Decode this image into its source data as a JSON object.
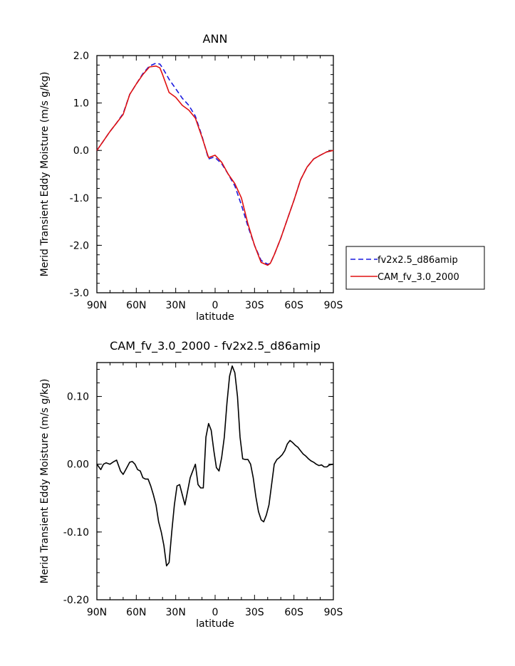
{
  "chart_data": [
    {
      "type": "line",
      "title": "ANN",
      "xlabel": "latitude",
      "ylabel": "Merid Transient Eddy Moisture (m/s g/kg)",
      "x_domain": [
        90,
        -90
      ],
      "xlim": [
        90,
        -90
      ],
      "ylim": [
        -3.0,
        2.0
      ],
      "xticks": [
        {
          "value": 90,
          "label": "90N"
        },
        {
          "value": 60,
          "label": "60N"
        },
        {
          "value": 30,
          "label": "30N"
        },
        {
          "value": 0,
          "label": "0"
        },
        {
          "value": -30,
          "label": "30S"
        },
        {
          "value": -60,
          "label": "60S"
        },
        {
          "value": -90,
          "label": "90S"
        }
      ],
      "yticks": [
        {
          "value": 2.0,
          "label": "2.0"
        },
        {
          "value": 1.0,
          "label": "1.0"
        },
        {
          "value": 0.0,
          "label": "0.0"
        },
        {
          "value": -1.0,
          "label": "-1.0"
        },
        {
          "value": -2.0,
          "label": "-2.0"
        },
        {
          "value": -3.0,
          "label": "-3.0"
        }
      ],
      "legend_position": "right",
      "series": [
        {
          "name": "fv2x2.5_d86amip",
          "color": "#1a1adf",
          "dash": "dashed",
          "x": [
            90,
            85,
            80,
            75,
            70,
            65,
            60,
            55,
            50,
            45,
            42,
            40,
            35,
            30,
            25,
            20,
            15,
            10,
            5,
            2,
            0,
            -5,
            -10,
            -15,
            -20,
            -25,
            -30,
            -35,
            -40,
            -42,
            -45,
            -50,
            -55,
            -60,
            -65,
            -70,
            -75,
            -80,
            -85,
            -90
          ],
          "y": [
            0.0,
            0.2,
            0.4,
            0.58,
            0.78,
            1.18,
            1.4,
            1.62,
            1.78,
            1.84,
            1.82,
            1.74,
            1.5,
            1.3,
            1.1,
            0.95,
            0.72,
            0.3,
            -0.18,
            -0.15,
            -0.15,
            -0.28,
            -0.5,
            -0.75,
            -1.15,
            -1.6,
            -2.0,
            -2.32,
            -2.4,
            -2.38,
            -2.2,
            -1.85,
            -1.45,
            -1.05,
            -0.62,
            -0.35,
            -0.18,
            -0.1,
            -0.03,
            0.0
          ]
        },
        {
          "name": "CAM_fv_3.0_2000",
          "color": "#e01010",
          "dash": "solid",
          "x": [
            90,
            85,
            80,
            75,
            70,
            65,
            60,
            55,
            50,
            45,
            42,
            40,
            35,
            30,
            25,
            20,
            15,
            10,
            5,
            2,
            0,
            -5,
            -10,
            -15,
            -20,
            -25,
            -30,
            -35,
            -40,
            -42,
            -45,
            -50,
            -55,
            -60,
            -65,
            -70,
            -75,
            -80,
            -85,
            -90
          ],
          "y": [
            0.0,
            0.2,
            0.4,
            0.58,
            0.76,
            1.18,
            1.4,
            1.6,
            1.76,
            1.78,
            1.74,
            1.6,
            1.22,
            1.12,
            0.95,
            0.85,
            0.68,
            0.28,
            -0.15,
            -0.12,
            -0.1,
            -0.25,
            -0.5,
            -0.7,
            -1.0,
            -1.55,
            -2.0,
            -2.36,
            -2.42,
            -2.38,
            -2.2,
            -1.85,
            -1.45,
            -1.05,
            -0.62,
            -0.35,
            -0.18,
            -0.1,
            -0.03,
            0.0
          ]
        }
      ]
    },
    {
      "type": "line",
      "title": "CAM_fv_3.0_2000 - fv2x2.5_d86amip",
      "xlabel": "latitude",
      "ylabel": "Merid Transient Eddy Moisture (m/s g/kg)",
      "x_domain": [
        90,
        -90
      ],
      "xlim": [
        90,
        -90
      ],
      "ylim": [
        -0.2,
        0.15
      ],
      "xticks": [
        {
          "value": 90,
          "label": "90N"
        },
        {
          "value": 60,
          "label": "60N"
        },
        {
          "value": 30,
          "label": "30N"
        },
        {
          "value": 0,
          "label": "0"
        },
        {
          "value": -30,
          "label": "30S"
        },
        {
          "value": -60,
          "label": "60S"
        },
        {
          "value": -90,
          "label": "90S"
        }
      ],
      "yticks": [
        {
          "value": 0.1,
          "label": "0.10"
        },
        {
          "value": 0.0,
          "label": "0.00"
        },
        {
          "value": -0.1,
          "label": "-0.10"
        },
        {
          "value": -0.2,
          "label": "-0.20"
        }
      ],
      "series": [
        {
          "color": "#000000",
          "dash": "solid",
          "x": [
            90,
            87,
            85,
            83,
            80,
            77,
            75,
            72,
            70,
            68,
            65,
            63,
            61,
            59,
            57,
            55,
            53,
            51,
            49,
            47,
            45,
            43,
            41,
            39,
            37,
            35,
            33,
            31,
            29,
            27,
            25,
            23,
            21,
            19,
            17,
            15,
            13,
            11,
            9,
            7,
            5,
            3,
            1,
            -1,
            -3,
            -5,
            -7,
            -9,
            -11,
            -13,
            -15,
            -17,
            -19,
            -21,
            -23,
            -25,
            -27,
            -29,
            -31,
            -33,
            -35,
            -37,
            -39,
            -41,
            -43,
            -45,
            -47,
            -49,
            -51,
            -53,
            -55,
            -57,
            -59,
            -61,
            -63,
            -65,
            -67,
            -69,
            -71,
            -73,
            -75,
            -77,
            -79,
            -81,
            -83,
            -85,
            -87,
            -90
          ],
          "y": [
            0.0,
            -0.008,
            0.0,
            0.002,
            0.0,
            0.004,
            0.006,
            -0.01,
            -0.015,
            -0.008,
            0.003,
            0.004,
            0.0,
            -0.008,
            -0.01,
            -0.02,
            -0.022,
            -0.022,
            -0.032,
            -0.045,
            -0.06,
            -0.085,
            -0.1,
            -0.12,
            -0.15,
            -0.145,
            -0.1,
            -0.06,
            -0.032,
            -0.03,
            -0.045,
            -0.06,
            -0.04,
            -0.02,
            -0.01,
            0.0,
            -0.03,
            -0.035,
            -0.035,
            0.04,
            0.06,
            0.05,
            0.02,
            -0.005,
            -0.01,
            0.01,
            0.04,
            0.09,
            0.13,
            0.145,
            0.135,
            0.1,
            0.04,
            0.008,
            0.007,
            0.007,
            0.0,
            -0.02,
            -0.048,
            -0.07,
            -0.082,
            -0.085,
            -0.075,
            -0.06,
            -0.03,
            0.0,
            0.007,
            0.01,
            0.014,
            0.02,
            0.03,
            0.035,
            0.032,
            0.028,
            0.025,
            0.02,
            0.015,
            0.012,
            0.008,
            0.005,
            0.003,
            0.0,
            -0.002,
            -0.001,
            -0.004,
            -0.004,
            -0.001,
            0.0
          ]
        }
      ]
    }
  ]
}
